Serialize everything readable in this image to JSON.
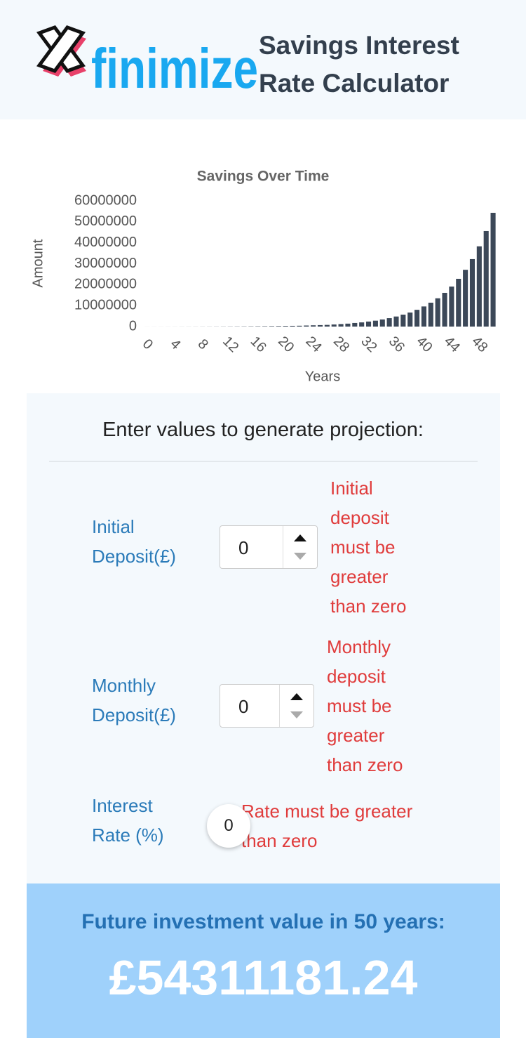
{
  "header": {
    "logo_text": "finimize",
    "title": "Savings Interest Rate Calculator"
  },
  "chart_data": {
    "type": "bar",
    "title": "Savings Over Time",
    "x_label": "Years",
    "y_label": "Amount",
    "categories": [
      "0",
      null,
      null,
      null,
      "4",
      null,
      null,
      null,
      "8",
      null,
      null,
      null,
      "12",
      null,
      null,
      null,
      "16",
      null,
      null,
      null,
      "20",
      null,
      null,
      null,
      "24",
      null,
      null,
      null,
      "28",
      null,
      null,
      null,
      "32",
      null,
      null,
      null,
      "36",
      null,
      null,
      null,
      "40",
      null,
      null,
      null,
      "44",
      null,
      null,
      null,
      "48",
      null,
      null
    ],
    "values": [
      9000,
      11000,
      13000,
      15000,
      18000,
      22000,
      26000,
      31000,
      37000,
      44000,
      52000,
      62000,
      74000,
      88000,
      105000,
      125000,
      150000,
      175000,
      210000,
      250000,
      300000,
      350000,
      400000,
      500000,
      600000,
      700000,
      800000,
      1000000,
      1200000,
      1400000,
      1700000,
      2000000,
      2400000,
      2800000,
      3400000,
      4000000,
      4800000,
      5700000,
      6700000,
      8000000,
      9600000,
      11400000,
      13500000,
      16100000,
      19100000,
      22800000,
      27100000,
      32200000,
      38300000,
      45600000,
      54300000
    ],
    "color": "#3c4858",
    "ylim": [
      0,
      60000000
    ],
    "yticks": [
      0,
      10000000,
      20000000,
      30000000,
      40000000,
      50000000,
      60000000
    ],
    "grid": false
  },
  "form": {
    "heading": "Enter values to generate projection:",
    "fields": [
      {
        "label": "Initial Deposit(£)",
        "value": "0",
        "error": "Initial deposit must be greater than zero"
      },
      {
        "label": "Monthly Deposit(£)",
        "value": "0",
        "error": "Monthly deposit must be greater than zero"
      },
      {
        "label": "Interest Rate (%)",
        "value": "0",
        "error": "Rate must be greater than zero"
      }
    ]
  },
  "result": {
    "label": "Future investment value in 50 years:",
    "value": "£54311181.24"
  }
}
